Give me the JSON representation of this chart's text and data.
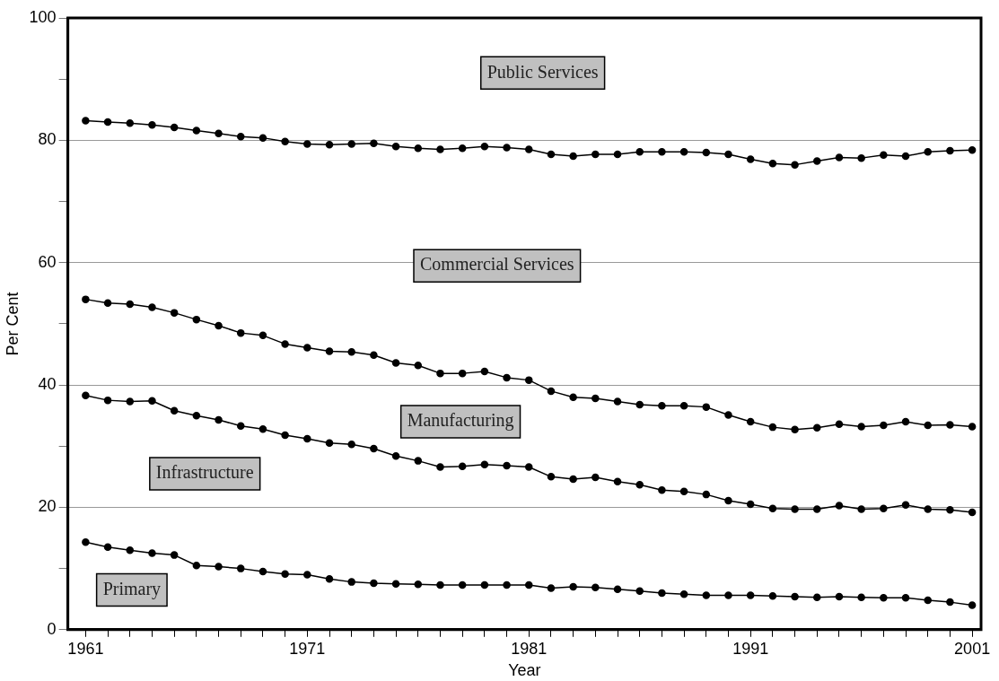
{
  "chart_data": {
    "type": "line",
    "xlabel": "Year",
    "ylabel": "Per Cent",
    "x": [
      1961,
      1962,
      1963,
      1964,
      1965,
      1966,
      1967,
      1968,
      1969,
      1970,
      1971,
      1972,
      1973,
      1974,
      1975,
      1976,
      1977,
      1978,
      1979,
      1980,
      1981,
      1982,
      1983,
      1984,
      1985,
      1986,
      1987,
      1988,
      1989,
      1990,
      1991,
      1992,
      1993,
      1994,
      1995,
      1996,
      1997,
      1998,
      1999,
      2000,
      2001
    ],
    "series": [
      {
        "color": "#000000",
        "values": [
          14.3,
          13.5,
          13,
          12.5,
          12.2,
          10.5,
          10.3,
          10,
          9.5,
          9.1,
          9,
          8.3,
          7.8,
          7.6,
          7.5,
          7.4,
          7.3,
          7.3,
          7.3,
          7.3,
          7.3,
          6.8,
          7,
          6.9,
          6.6,
          6.3,
          6,
          5.8,
          5.6,
          5.6,
          5.6,
          5.5,
          5.4,
          5.3,
          5.4,
          5.3,
          5.2,
          5.2,
          4.8,
          4.5,
          4
        ]
      },
      {
        "color": "#000000",
        "values": [
          38.3,
          37.5,
          37.3,
          37.4,
          35.8,
          35,
          34.3,
          33.3,
          32.8,
          31.8,
          31.2,
          30.5,
          30.3,
          29.6,
          28.4,
          27.6,
          26.6,
          26.7,
          27,
          26.8,
          26.6,
          25,
          24.6,
          24.9,
          24.2,
          23.7,
          22.8,
          22.6,
          22.1,
          21.1,
          20.5,
          19.8,
          19.7,
          19.7,
          20.3,
          19.7,
          19.8,
          20.4,
          19.7,
          19.6,
          19.2
        ]
      },
      {
        "color": "#000000",
        "values": [
          54,
          53.4,
          53.2,
          52.7,
          51.8,
          50.7,
          49.7,
          48.5,
          48.1,
          46.7,
          46.1,
          45.5,
          45.4,
          44.9,
          43.6,
          43.2,
          41.9,
          41.9,
          42.2,
          41.2,
          40.8,
          39,
          38,
          37.8,
          37.3,
          36.8,
          36.6,
          36.6,
          36.4,
          35.1,
          34,
          33.1,
          32.7,
          33,
          33.6,
          33.2,
          33.4,
          34,
          33.4,
          33.5,
          33.2
        ]
      },
      {
        "color": "#000000",
        "values": [
          83.2,
          83,
          82.8,
          82.5,
          82.1,
          81.6,
          81.1,
          80.6,
          80.4,
          79.8,
          79.4,
          79.3,
          79.4,
          79.5,
          79,
          78.7,
          78.5,
          78.7,
          79,
          78.8,
          78.5,
          77.7,
          77.4,
          77.7,
          77.7,
          78.1,
          78.1,
          78.1,
          78,
          77.7,
          76.9,
          76.2,
          76,
          76.6,
          77.2,
          77.1,
          77.6,
          77.4,
          78.1,
          78.3,
          78.4
        ]
      }
    ],
    "xlim": [
      1960.2,
      2001.4
    ],
    "xticks": [
      1961,
      {
        "value": 1962,
        "label": null
      },
      {
        "value": 1963,
        "label": null
      },
      {
        "value": 1964,
        "label": null
      },
      {
        "value": 1965,
        "label": null
      },
      {
        "value": 1966,
        "label": null
      },
      {
        "value": 1967,
        "label": null
      },
      {
        "value": 1968,
        "label": null
      },
      {
        "value": 1969,
        "label": null
      },
      {
        "value": 1970,
        "label": null
      },
      1971,
      {
        "value": 1972,
        "label": null
      },
      {
        "value": 1973,
        "label": null
      },
      {
        "value": 1974,
        "label": null
      },
      {
        "value": 1975,
        "label": null
      },
      {
        "value": 1976,
        "label": null
      },
      {
        "value": 1977,
        "label": null
      },
      {
        "value": 1978,
        "label": null
      },
      {
        "value": 1979,
        "label": null
      },
      {
        "value": 1980,
        "label": null
      },
      1981,
      {
        "value": 1982,
        "label": null
      },
      {
        "value": 1983,
        "label": null
      },
      {
        "value": 1984,
        "label": null
      },
      {
        "value": 1985,
        "label": null
      },
      {
        "value": 1986,
        "label": null
      },
      {
        "value": 1987,
        "label": null
      },
      {
        "value": 1988,
        "label": null
      },
      {
        "value": 1989,
        "label": null
      },
      {
        "value": 1990,
        "label": null
      },
      1991,
      {
        "value": 1992,
        "label": null
      },
      {
        "value": 1993,
        "label": null
      },
      {
        "value": 1994,
        "label": null
      },
      {
        "value": 1995,
        "label": null
      },
      {
        "value": 1996,
        "label": null
      },
      {
        "value": 1997,
        "label": null
      },
      {
        "value": 1998,
        "label": null
      },
      {
        "value": 1999,
        "label": null
      },
      {
        "value": 2000,
        "label": null
      },
      2001
    ],
    "ylim": [
      0,
      100
    ],
    "yticks": [
      0,
      {
        "value": 10,
        "label": null
      },
      20,
      {
        "value": 30,
        "label": null
      },
      40,
      {
        "value": 50,
        "label": null
      },
      60,
      {
        "value": 70,
        "label": null
      },
      80,
      {
        "value": 90,
        "label": null
      },
      100
    ],
    "grid": "y",
    "legend": false,
    "marker": "circle",
    "line_style": "solid",
    "annotations": [
      "Public Services",
      "Commercial Services",
      "Manufacturing",
      "Infrastructure",
      "Primary"
    ]
  }
}
